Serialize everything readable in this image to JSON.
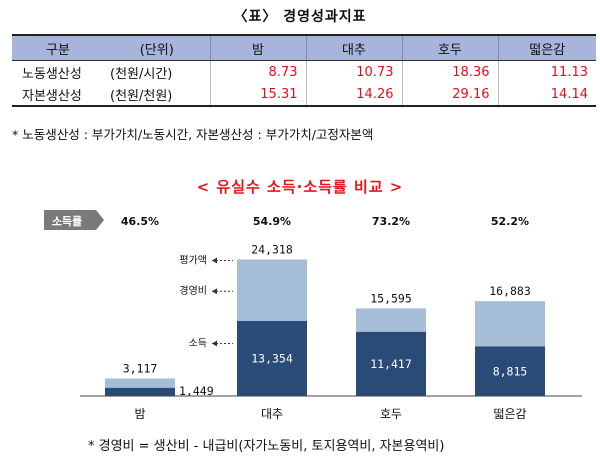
{
  "table_title": "〈표〉 경영성과지표",
  "table": {
    "headers": [
      "구분",
      "(단위)",
      "밤",
      "대추",
      "호두",
      "떫은감"
    ],
    "rows": [
      {
        "label": "노동생산성",
        "unit": "(천원/시간)",
        "values": [
          "8.73",
          "10.73",
          "18.36",
          "11.13"
        ]
      },
      {
        "label": "자본생산성",
        "unit": "(천원/천원)",
        "values": [
          "15.31",
          "14.26",
          "29.16",
          "14.14"
        ]
      }
    ]
  },
  "table_note": "* 노동생산성 : 부가가치/노동시간, 자본생산성 : 부가가치/고정자본액",
  "chart_data": {
    "type": "bar",
    "title": "< 유실수 소득·소득률 비교 >",
    "categories": [
      "밤",
      "대추",
      "호두",
      "떫은감"
    ],
    "series": [
      {
        "name": "소득",
        "values": [
          1449,
          13354,
          11417,
          8815
        ],
        "color": "#2a4a78"
      },
      {
        "name": "경영비",
        "values": [
          1668,
          10964,
          4178,
          8068
        ],
        "color": "#a5bdd6"
      }
    ],
    "totals": [
      3117,
      24318,
      15595,
      16883
    ],
    "total_labels": [
      "3,117",
      "24,318",
      "15,595",
      "16,883"
    ],
    "income_labels": [
      "1,449",
      "13,354",
      "11,417",
      "8,815"
    ],
    "income_rate_label": "소득률",
    "income_rates": [
      "46.5%",
      "54.9%",
      "73.2%",
      "52.2%"
    ],
    "legend_labels": {
      "total": "평가액",
      "cost": "경영비",
      "income": "소득"
    },
    "ylim": [
      0,
      26000
    ]
  },
  "chart_note": "* 경영비 = 생산비 - 내급비(자가노동비, 토지용역비, 자본용역비)"
}
